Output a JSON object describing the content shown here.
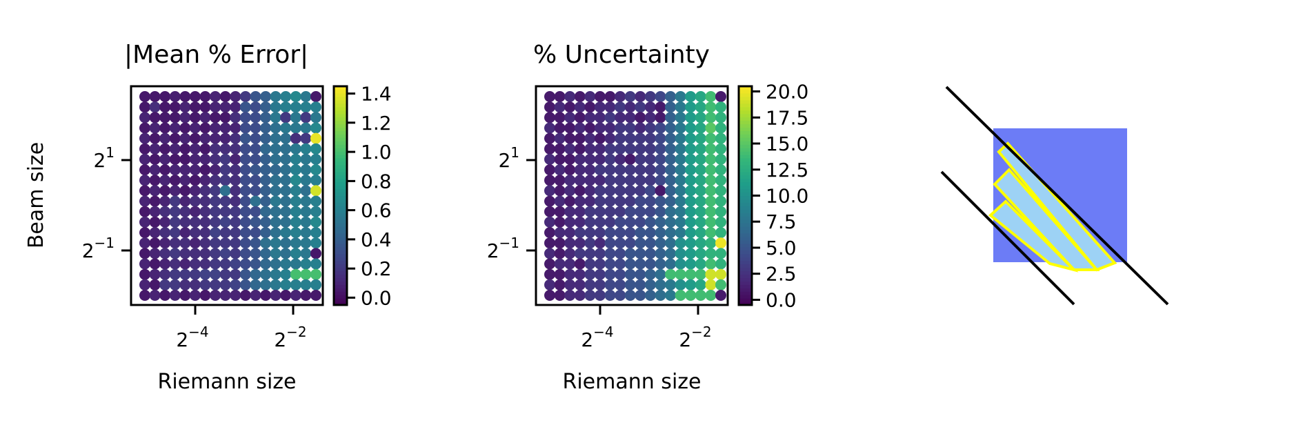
{
  "chart_data": [
    {
      "type": "heatmap",
      "title": "|Mean % Error|",
      "xlabel": "Riemann size",
      "ylabel": "Beam size",
      "x_scale": "log2",
      "y_scale": "log2",
      "x_ticks": [
        {
          "value": 0.0625,
          "base": "2",
          "exp": "−4"
        },
        {
          "value": 0.25,
          "base": "2",
          "exp": "−2"
        }
      ],
      "y_ticks": [
        {
          "value": 2,
          "base": "2",
          "exp": "1"
        },
        {
          "value": 0.5,
          "base": "2",
          "exp": "−1"
        }
      ],
      "colorbar": {
        "colormap": "viridis",
        "range": [
          -0.05,
          1.45
        ],
        "ticks": [
          0.0,
          0.2,
          0.4,
          0.6,
          0.8,
          1.0,
          1.2,
          1.4
        ],
        "tick_labels": [
          "0.0",
          "0.2",
          "0.4",
          "0.6",
          "0.8",
          "1.0",
          "1.2",
          "1.4"
        ]
      },
      "grid": {
        "cols": 18,
        "rows": 20,
        "row_order": "top-to-bottom",
        "values": [
          [
            0.05,
            0.05,
            0.05,
            0.08,
            0.05,
            0.05,
            0.05,
            0.1,
            0.05,
            0.1,
            0.2,
            0.35,
            0.4,
            0.55,
            0.6,
            0.65,
            0.55,
            0.05
          ],
          [
            0.05,
            0.15,
            0.05,
            0.05,
            0.1,
            0.05,
            0.05,
            0.1,
            0.1,
            0.1,
            0.35,
            0.3,
            0.4,
            0.55,
            0.6,
            0.6,
            0.6,
            0.6
          ],
          [
            0.1,
            0.05,
            0.05,
            0.05,
            0.1,
            0.05,
            0.1,
            0.05,
            0.05,
            0.15,
            0.3,
            0.3,
            0.4,
            0.55,
            0.2,
            0.55,
            0.2,
            0.55
          ],
          [
            0.05,
            0.1,
            0.05,
            0.1,
            0.05,
            0.1,
            0.05,
            0.1,
            0.1,
            0.1,
            0.3,
            0.3,
            0.4,
            0.5,
            0.55,
            0.55,
            0.55,
            0.65
          ],
          [
            0.1,
            0.05,
            0.1,
            0.05,
            0.1,
            0.05,
            0.1,
            0.1,
            0.1,
            0.15,
            0.35,
            0.3,
            0.4,
            0.5,
            0.5,
            0.15,
            0.2,
            1.4
          ],
          [
            0.05,
            0.1,
            0.05,
            0.1,
            0.05,
            0.1,
            0.05,
            0.15,
            0.15,
            0.15,
            0.3,
            0.3,
            0.45,
            0.5,
            0.5,
            0.55,
            0.6,
            0.65
          ],
          [
            0.1,
            0.05,
            0.1,
            0.05,
            0.05,
            0.1,
            0.1,
            0.15,
            0.2,
            0.1,
            0.3,
            0.3,
            0.4,
            0.5,
            0.5,
            0.6,
            0.55,
            0.6
          ],
          [
            0.05,
            0.1,
            0.05,
            0.1,
            0.1,
            0.1,
            0.05,
            0.1,
            0.2,
            0.15,
            0.3,
            0.35,
            0.4,
            0.45,
            0.5,
            0.6,
            0.55,
            0.65
          ],
          [
            0.1,
            0.05,
            0.1,
            0.05,
            0.1,
            0.05,
            0.1,
            0.15,
            0.2,
            0.15,
            0.3,
            0.3,
            0.4,
            0.5,
            0.5,
            0.65,
            0.55,
            0.6
          ],
          [
            0.05,
            0.1,
            0.05,
            0.1,
            0.05,
            0.1,
            0.15,
            0.2,
            0.5,
            0.15,
            0.3,
            0.3,
            0.4,
            0.5,
            0.5,
            0.6,
            0.5,
            1.35
          ],
          [
            0.1,
            0.05,
            0.1,
            0.2,
            0.1,
            0.15,
            0.15,
            0.2,
            0.2,
            0.15,
            0.3,
            0.5,
            0.4,
            0.55,
            0.5,
            0.6,
            0.55,
            0.6
          ],
          [
            0.05,
            0.1,
            0.15,
            0.2,
            0.15,
            0.1,
            0.15,
            0.2,
            0.2,
            0.2,
            0.3,
            0.3,
            0.45,
            0.5,
            0.5,
            0.6,
            0.55,
            0.6
          ],
          [
            0.1,
            0.05,
            0.1,
            0.2,
            0.15,
            0.15,
            0.15,
            0.2,
            0.25,
            0.2,
            0.3,
            0.35,
            0.4,
            0.5,
            0.5,
            0.6,
            0.55,
            0.65
          ],
          [
            0.05,
            0.1,
            0.15,
            0.2,
            0.1,
            0.15,
            0.15,
            0.25,
            0.2,
            0.2,
            0.3,
            0.3,
            0.4,
            0.5,
            0.55,
            0.6,
            0.55,
            0.6
          ],
          [
            0.1,
            0.05,
            0.1,
            0.15,
            0.15,
            0.1,
            0.15,
            0.2,
            0.2,
            0.2,
            0.3,
            0.35,
            0.5,
            0.55,
            0.5,
            0.55,
            0.55,
            0.6
          ],
          [
            0.05,
            0.1,
            0.15,
            0.2,
            0.15,
            0.15,
            0.15,
            0.2,
            0.25,
            0.2,
            0.3,
            0.35,
            0.45,
            0.55,
            0.5,
            0.6,
            0.55,
            0.05
          ],
          [
            0.1,
            0.05,
            0.1,
            0.15,
            0.1,
            0.15,
            0.15,
            0.2,
            0.2,
            0.25,
            0.3,
            0.35,
            0.45,
            0.5,
            0.55,
            0.55,
            0.6,
            0.6
          ],
          [
            0.05,
            0.1,
            0.15,
            0.2,
            0.2,
            0.2,
            0.25,
            0.25,
            0.2,
            0.2,
            0.35,
            0.45,
            0.5,
            0.55,
            0.6,
            1.0,
            1.0,
            1.0
          ],
          [
            0.1,
            0.05,
            0.2,
            0.2,
            0.15,
            0.15,
            0.2,
            0.2,
            0.2,
            0.25,
            0.35,
            0.45,
            0.5,
            0.55,
            0.6,
            0.6,
            0.6,
            0.6
          ],
          [
            0.05,
            0.1,
            0.05,
            0.1,
            0.05,
            0.1,
            0.05,
            0.1,
            0.1,
            0.1,
            0.05,
            0.1,
            0.05,
            0.1,
            0.05,
            0.1,
            0.05,
            0.05
          ]
        ]
      }
    },
    {
      "type": "heatmap",
      "title": "% Uncertainty",
      "xlabel": "Riemann size",
      "ylabel": "",
      "x_scale": "log2",
      "y_scale": "log2",
      "x_ticks": [
        {
          "value": 0.0625,
          "base": "2",
          "exp": "−4"
        },
        {
          "value": 0.25,
          "base": "2",
          "exp": "−2"
        }
      ],
      "y_ticks": [
        {
          "value": 2,
          "base": "2",
          "exp": "1"
        },
        {
          "value": 0.5,
          "base": "2",
          "exp": "−1"
        }
      ],
      "colorbar": {
        "colormap": "viridis",
        "range": [
          -0.5,
          20.5
        ],
        "ticks": [
          0.0,
          2.5,
          5.0,
          7.5,
          10.0,
          12.5,
          15.0,
          17.5,
          20.0
        ],
        "tick_labels": [
          "0.0",
          "2.5",
          "5.0",
          "7.5",
          "10.0",
          "12.5",
          "15.0",
          "17.5",
          "20.0"
        ]
      },
      "grid": {
        "cols": 18,
        "rows": 20,
        "row_order": "top-to-bottom",
        "values": [
          [
            1,
            1,
            2,
            1,
            2,
            1,
            1,
            2,
            3,
            2,
            3,
            4,
            6,
            8,
            11,
            12,
            14,
            1
          ],
          [
            1,
            2,
            1,
            2,
            1,
            2,
            2,
            3,
            2,
            3,
            2,
            1,
            6,
            8,
            11,
            12,
            14,
            13
          ],
          [
            1,
            1,
            2,
            1,
            2,
            2,
            3,
            2,
            2,
            1,
            2,
            1,
            6,
            8,
            11,
            12,
            14,
            13
          ],
          [
            2,
            1,
            1,
            2,
            1,
            2,
            2,
            3,
            3,
            2,
            3,
            4,
            6,
            8,
            11,
            12,
            15,
            13
          ],
          [
            1,
            2,
            1,
            1,
            2,
            1,
            2,
            3,
            3,
            3,
            3,
            4,
            6,
            8,
            11,
            12,
            14,
            13
          ],
          [
            1,
            1,
            2,
            1,
            2,
            2,
            3,
            3,
            3,
            3,
            3,
            4,
            6,
            8,
            11,
            12,
            14,
            13
          ],
          [
            2,
            1,
            1,
            2,
            2,
            2,
            3,
            2,
            1,
            3,
            3,
            4,
            6,
            8,
            11,
            12,
            14,
            13
          ],
          [
            1,
            2,
            1,
            2,
            2,
            3,
            3,
            3,
            3,
            3,
            3,
            4,
            6,
            8,
            11,
            12,
            14,
            13
          ],
          [
            1,
            1,
            2,
            2,
            2,
            2,
            3,
            3,
            3,
            3,
            3,
            4,
            6,
            8,
            11,
            12,
            14,
            13
          ],
          [
            2,
            1,
            2,
            1,
            2,
            3,
            3,
            3,
            3,
            3,
            4,
            1,
            6,
            8,
            11,
            12,
            14,
            13
          ],
          [
            1,
            2,
            1,
            2,
            2,
            3,
            3,
            3,
            3,
            4,
            4,
            5,
            6,
            8,
            11,
            12,
            14,
            13
          ],
          [
            1,
            1,
            2,
            2,
            3,
            3,
            3,
            3,
            4,
            4,
            4,
            5,
            7,
            8,
            11,
            12,
            14,
            13
          ],
          [
            2,
            1,
            2,
            2,
            3,
            3,
            3,
            4,
            4,
            4,
            5,
            6,
            7,
            8,
            11,
            12,
            14,
            13
          ],
          [
            1,
            2,
            2,
            3,
            3,
            3,
            4,
            4,
            4,
            5,
            5,
            6,
            7,
            8,
            11,
            12,
            14,
            13
          ],
          [
            1,
            1,
            2,
            2,
            3,
            2,
            4,
            4,
            4,
            5,
            5,
            6,
            7,
            10,
            11,
            12,
            13,
            20
          ],
          [
            2,
            1,
            2,
            3,
            3,
            3,
            4,
            4,
            5,
            5,
            5,
            6,
            7,
            10,
            11,
            12,
            13,
            13
          ],
          [
            1,
            2,
            2,
            1,
            3,
            3,
            4,
            4,
            5,
            5,
            5,
            6,
            7,
            10,
            11,
            12,
            14,
            13
          ],
          [
            1,
            1,
            2,
            2,
            3,
            3,
            4,
            4,
            5,
            5,
            6,
            7,
            14,
            14,
            14,
            14,
            19,
            19
          ],
          [
            2,
            1,
            2,
            2,
            3,
            3,
            4,
            4,
            5,
            5,
            6,
            7,
            8,
            10,
            11,
            12,
            19,
            14
          ],
          [
            1,
            1,
            2,
            2,
            3,
            3,
            4,
            4,
            5,
            5,
            6,
            7,
            8,
            14,
            14,
            14,
            14,
            1
          ]
        ]
      }
    }
  ],
  "diagram": {
    "square_color": "#6c7cf6",
    "strip_fill": "#9dd2f5",
    "strip_stroke": "#ffff00",
    "line_color": "#000000"
  }
}
